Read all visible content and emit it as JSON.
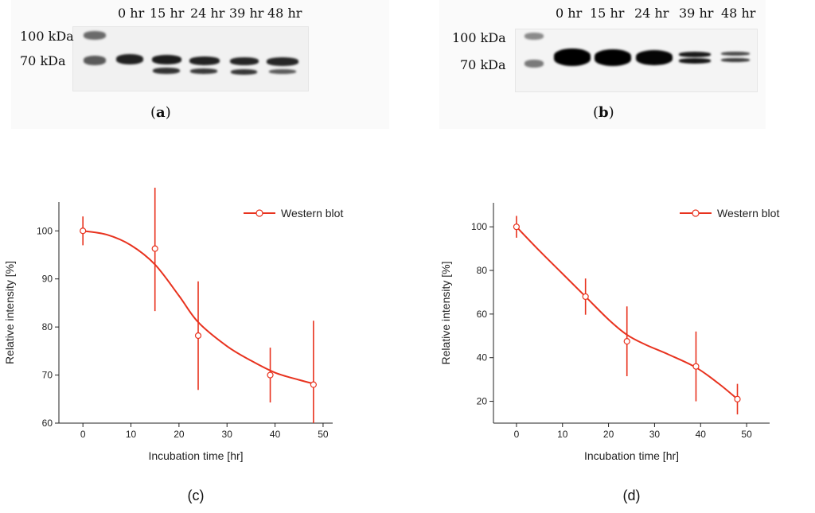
{
  "blots": [
    {
      "panel_label": "a",
      "lanes": [
        "0 hr",
        "15 hr",
        "24 hr",
        "39 hr",
        "48 hr"
      ],
      "markers": [
        "100 kDa",
        "70 kDa"
      ]
    },
    {
      "panel_label": "b",
      "lanes": [
        "0 hr",
        "15 hr",
        "24 hr",
        "39 hr",
        "48 hr"
      ],
      "markers": [
        "100 kDa",
        "70 kDa"
      ]
    }
  ],
  "chart_data": [
    {
      "type": "line",
      "panel_label": "(c)",
      "xlabel": "Incubation time [hr]",
      "ylabel": "Relative intensity [%]",
      "xlim": [
        -5,
        52
      ],
      "ylim": [
        60,
        106
      ],
      "xticks": [
        0,
        10,
        20,
        30,
        40,
        50
      ],
      "yticks": [
        60,
        70,
        80,
        90,
        100
      ],
      "legend": "top-right",
      "series": [
        {
          "name": "Western blot",
          "color": "#e8321e",
          "x": [
            0,
            15,
            24,
            39,
            48
          ],
          "y": [
            100,
            96.3,
            78.2,
            70,
            68
          ],
          "err": [
            3,
            13,
            11.3,
            5.7,
            13.3
          ]
        }
      ],
      "fit_curve": {
        "x": [
          0,
          5,
          10,
          15,
          20,
          24,
          30,
          35,
          40,
          45,
          48
        ],
        "y": [
          100,
          99.2,
          97,
          93,
          86.5,
          81,
          76,
          73,
          70.5,
          69,
          68.2
        ]
      }
    },
    {
      "type": "line",
      "panel_label": "(d)",
      "xlabel": "Incubation time [hr]",
      "ylabel": "Relative intensity [%]",
      "xlim": [
        -5,
        55
      ],
      "ylim": [
        10,
        111
      ],
      "xticks": [
        0,
        10,
        20,
        30,
        40,
        50
      ],
      "yticks": [
        20,
        40,
        60,
        80,
        100
      ],
      "legend": "top-right",
      "series": [
        {
          "name": "Western blot",
          "color": "#e8321e",
          "x": [
            0,
            15,
            24,
            39,
            48
          ],
          "y": [
            100,
            68,
            47.5,
            36,
            21
          ],
          "err": [
            5,
            8.3,
            16,
            16,
            7
          ]
        }
      ],
      "fit_curve": {
        "x": [
          0,
          5,
          10,
          15,
          20,
          24,
          28,
          33,
          39,
          44,
          48
        ],
        "y": [
          100,
          89,
          78.5,
          68,
          57.5,
          50.5,
          46,
          41.5,
          35.5,
          28,
          21
        ]
      }
    }
  ]
}
